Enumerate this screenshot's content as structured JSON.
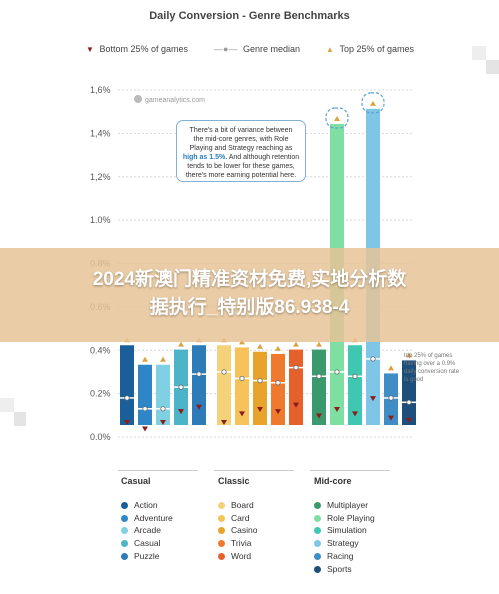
{
  "chart_data": {
    "type": "bar",
    "title": "Daily Conversion - Genre Benchmarks",
    "y_ticks": [
      "0.0%",
      "0.2%",
      "0.4%",
      "0.6%",
      "0.8%",
      "1.0%",
      "1,2%",
      "1,4%",
      "1,6%"
    ],
    "ylim": [
      0,
      1.6
    ],
    "legend": {
      "bottom": "Bottom 25% of games",
      "median": "Genre median",
      "top": "Top 25% of games"
    },
    "series": [
      {
        "group": "Casual",
        "name": "Action",
        "color": "#1b5f9a",
        "bottom": 0.06,
        "median": 0.18,
        "top": 0.46
      },
      {
        "group": "Casual",
        "name": "Adventure",
        "color": "#2f86c7",
        "bottom": 0.03,
        "median": 0.13,
        "top": 0.37
      },
      {
        "group": "Casual",
        "name": "Arcade",
        "color": "#7fd0e3",
        "bottom": 0.06,
        "median": 0.13,
        "top": 0.37
      },
      {
        "group": "Casual",
        "name": "Casual",
        "color": "#4db3c7",
        "bottom": 0.11,
        "median": 0.23,
        "top": 0.44
      },
      {
        "group": "Casual",
        "name": "Puzzle",
        "color": "#2d7bb8",
        "bottom": 0.13,
        "median": 0.29,
        "top": 0.46
      },
      {
        "group": "Classic",
        "name": "Board",
        "color": "#f3d27a",
        "bottom": 0.06,
        "median": 0.3,
        "top": 0.46
      },
      {
        "group": "Classic",
        "name": "Card",
        "color": "#f6c25a",
        "bottom": 0.1,
        "median": 0.27,
        "top": 0.45
      },
      {
        "group": "Classic",
        "name": "Casino",
        "color": "#e8a32d",
        "bottom": 0.12,
        "median": 0.26,
        "top": 0.43
      },
      {
        "group": "Classic",
        "name": "Trivia",
        "color": "#ef7a2f",
        "bottom": 0.11,
        "median": 0.25,
        "top": 0.42
      },
      {
        "group": "Classic",
        "name": "Word",
        "color": "#e6602c",
        "bottom": 0.14,
        "median": 0.32,
        "top": 0.44
      },
      {
        "group": "Mid-core",
        "name": "Multiplayer",
        "color": "#3a9a6e",
        "bottom": 0.09,
        "median": 0.28,
        "top": 0.44
      },
      {
        "group": "Mid-core",
        "name": "Role Playing",
        "color": "#7fdfa3",
        "bottom": 0.12,
        "median": 0.3,
        "top": 1.48
      },
      {
        "group": "Mid-core",
        "name": "Simulation",
        "color": "#3fc7b1",
        "bottom": 0.1,
        "median": 0.28,
        "top": 0.46
      },
      {
        "group": "Mid-core",
        "name": "Strategy",
        "color": "#7fc6e6",
        "bottom": 0.17,
        "median": 0.36,
        "top": 1.55
      },
      {
        "group": "Mid-core",
        "name": "Racing",
        "color": "#3f8dc4",
        "bottom": 0.08,
        "median": 0.18,
        "top": 0.33
      },
      {
        "group": "Mid-core",
        "name": "Sports",
        "color": "#1c4f7c",
        "bottom": 0.07,
        "median": 0.16,
        "top": 0.39
      }
    ]
  },
  "annotation": {
    "line1": "There's a bit of variance between",
    "line2": "the mid-core genres, with Role",
    "line3": "Playing and Strategy reaching as",
    "highlight": "high as 1.5%.",
    "line4": " And although retention",
    "line5": "tends to be lower for these games,",
    "line6": "there's more earning potential here."
  },
  "watermark": "gameanalytics.com",
  "note": "top 25% of games having over a 0.9% daily conversion rate is good",
  "groups": {
    "casual": {
      "title": "Casual",
      "items": [
        "Action",
        "Adventure",
        "Arcade",
        "Casual",
        "Puzzle"
      ]
    },
    "classic": {
      "title": "Classic",
      "items": [
        "Board",
        "Card",
        "Casino",
        "Trivia",
        "Word"
      ]
    },
    "midcore": {
      "title": "Mid-core",
      "items": [
        "Multiplayer",
        "Role Playing",
        "Simulation",
        "Strategy",
        "Racing",
        "Sports"
      ]
    }
  },
  "banner": {
    "line1": "2024新澳门精准资材免费,实地分析数",
    "line2": "据执行_特别版86.938-4"
  },
  "colors": {
    "bottom_marker": "#8a1c1c",
    "top_marker": "#d9a441",
    "median_marker": "#888888"
  }
}
